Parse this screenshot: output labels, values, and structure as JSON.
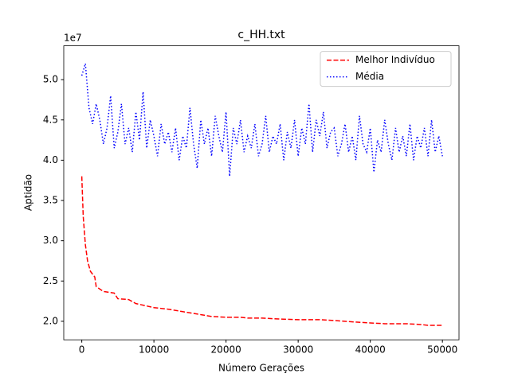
{
  "chart_data": {
    "type": "line",
    "title": "c_HH.txt",
    "x_label": "Número Gerações",
    "y_label": "Aptidão",
    "y_offset_label": "1e7",
    "xlim": [
      -2500,
      52300
    ],
    "ylim": [
      1.77,
      5.42
    ],
    "xticks": [
      0,
      10000,
      20000,
      30000,
      40000,
      50000
    ],
    "yticks": [
      {
        "value": 2,
        "label": "2.0"
      },
      {
        "value": 2.5,
        "label": "2.5"
      },
      {
        "value": 3,
        "label": "3.0"
      },
      {
        "value": 3.5,
        "label": "3.5"
      },
      {
        "value": 4,
        "label": "4.0"
      },
      {
        "value": 4.5,
        "label": "4.5"
      },
      {
        "value": 5,
        "label": "5.0"
      }
    ],
    "legend": "upper right",
    "series": [
      {
        "name": "Melhor Indivíduo",
        "color": "#ff0000",
        "dash": "dashed",
        "x": [
          0,
          200,
          500,
          800,
          1200,
          1800,
          2000,
          2500,
          3000,
          4500,
          5000,
          6500,
          7500,
          9000,
          10000,
          12000,
          14000,
          16000,
          18000,
          20000,
          22000,
          23000,
          25000,
          27000,
          30000,
          33000,
          35000,
          38000,
          40000,
          42000,
          45000,
          47000,
          48000,
          50000
        ],
        "values": [
          3.8,
          3.3,
          2.95,
          2.75,
          2.62,
          2.55,
          2.43,
          2.4,
          2.37,
          2.35,
          2.28,
          2.27,
          2.22,
          2.19,
          2.17,
          2.15,
          2.12,
          2.09,
          2.06,
          2.05,
          2.05,
          2.04,
          2.04,
          2.03,
          2.02,
          2.02,
          2.01,
          1.99,
          1.98,
          1.97,
          1.97,
          1.96,
          1.95,
          1.95
        ]
      },
      {
        "name": "Média",
        "color": "#0000ff",
        "dash": "dotted",
        "x": [
          0,
          500,
          1000,
          1500,
          2000,
          2500,
          3000,
          3500,
          4000,
          4500,
          5000,
          5500,
          6000,
          6500,
          7000,
          7500,
          8000,
          8500,
          9000,
          9500,
          10000,
          10500,
          11000,
          11500,
          12000,
          12500,
          13000,
          13500,
          14000,
          14500,
          15000,
          15500,
          16000,
          16500,
          17000,
          17500,
          18000,
          18500,
          19000,
          19500,
          20000,
          20500,
          21000,
          21500,
          22000,
          22500,
          23000,
          23500,
          24000,
          24500,
          25000,
          25500,
          26000,
          26500,
          27000,
          27500,
          28000,
          28500,
          29000,
          29500,
          30000,
          30500,
          31000,
          31500,
          32000,
          32500,
          33000,
          33500,
          34000,
          34500,
          35000,
          35500,
          36000,
          36500,
          37000,
          37500,
          38000,
          38500,
          39000,
          39500,
          40000,
          40500,
          41000,
          41500,
          42000,
          42500,
          43000,
          43500,
          44000,
          44500,
          45000,
          45500,
          46000,
          46500,
          47000,
          47500,
          48000,
          48500,
          49000,
          49500,
          50000
        ],
        "values": [
          5.05,
          5.2,
          4.65,
          4.45,
          4.7,
          4.5,
          4.2,
          4.4,
          4.8,
          4.15,
          4.35,
          4.7,
          4.2,
          4.4,
          4.1,
          4.6,
          4.25,
          4.85,
          4.15,
          4.5,
          4.3,
          4.05,
          4.45,
          4.2,
          4.35,
          4.1,
          4.4,
          4.0,
          4.3,
          4.15,
          4.65,
          4.2,
          3.9,
          4.5,
          4.2,
          4.4,
          4.05,
          4.55,
          4.3,
          4.1,
          4.6,
          3.8,
          4.4,
          4.2,
          4.5,
          4.1,
          4.3,
          4.15,
          4.45,
          4.05,
          4.2,
          4.55,
          4.1,
          4.3,
          4.2,
          4.45,
          4.0,
          4.35,
          4.15,
          4.5,
          4.05,
          4.4,
          4.2,
          4.7,
          4.1,
          4.5,
          4.3,
          4.6,
          4.15,
          4.35,
          4.4,
          4.05,
          4.2,
          4.45,
          4.1,
          4.3,
          4.0,
          4.55,
          4.2,
          4.1,
          4.4,
          3.85,
          4.25,
          4.1,
          4.5,
          4.2,
          4.0,
          4.4,
          4.1,
          4.3,
          4.05,
          4.45,
          4.0,
          4.3,
          4.15,
          4.4,
          4.05,
          4.5,
          4.1,
          4.3,
          4.05
        ]
      }
    ]
  }
}
